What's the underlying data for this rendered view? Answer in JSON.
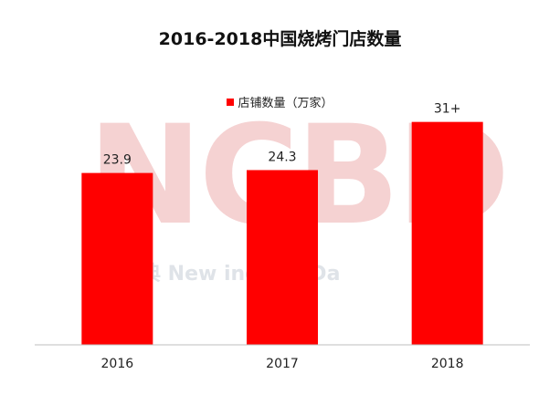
{
  "watermark": {
    "logo_text": "NCBD",
    "tagline": "宝典 New        ing Big Da"
  },
  "chart_data": {
    "type": "bar",
    "title": "2016-2018中国烧烤门店数量",
    "categories": [
      "2016",
      "2017",
      "2018"
    ],
    "series": [
      {
        "name": "店铺数量（万家）",
        "values": [
          23.9,
          24.3,
          31
        ],
        "labels": [
          "23.9",
          "24.3",
          "31+"
        ],
        "color": "#ff0000"
      }
    ],
    "xlabel": "",
    "ylabel": "",
    "ylim": [
      0,
      34
    ],
    "legend_position": "top-center",
    "grid": false
  }
}
